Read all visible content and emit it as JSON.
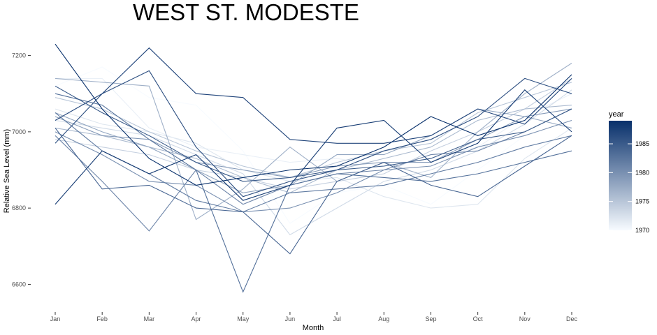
{
  "chart_data": {
    "type": "line",
    "title": "WEST ST. MODESTE",
    "xlabel": "Month",
    "ylabel": "Relative Sea Level (mm)",
    "categories": [
      "Jan",
      "Feb",
      "Mar",
      "Apr",
      "May",
      "Jun",
      "Jul",
      "Aug",
      "Sep",
      "Oct",
      "Nov",
      "Dec"
    ],
    "ylim": [
      6555,
      7245
    ],
    "yticks": [
      6600,
      6800,
      7000,
      7200
    ],
    "grid": false,
    "legend": {
      "title": "year",
      "placement": "right",
      "type": "colorbar",
      "range": [
        1970,
        1989
      ],
      "ticks": [
        1970,
        1975,
        1980,
        1985
      ],
      "color_low": "#f7fbff",
      "color_high": "#08306b"
    },
    "series": [
      {
        "year": 1970,
        "values": [
          7120,
          7170,
          7090,
          7070,
          6950,
          6760,
          6840,
          6860,
          6810,
          6900,
          6990,
          7070
        ]
      },
      {
        "year": 1971,
        "values": [
          7140,
          7140,
          7010,
          6960,
          6940,
          6920,
          6930,
          6910,
          6930,
          6960,
          7040,
          7100
        ]
      },
      {
        "year": 1972,
        "values": [
          7060,
          7020,
          7000,
          6970,
          6900,
          6870,
          6880,
          6830,
          6800,
          6810,
          6930,
          7010
        ]
      },
      {
        "year": 1973,
        "values": [
          7030,
          7010,
          6990,
          6940,
          6890,
          6730,
          6800,
          6870,
          6900,
          6950,
          7020,
          7110
        ]
      },
      {
        "year": 1974,
        "values": [
          6980,
          6960,
          6940,
          6900,
          6880,
          6850,
          6870,
          6890,
          6950,
          7000,
          7060,
          7140
        ]
      },
      {
        "year": 1975,
        "values": [
          7090,
          7060,
          7000,
          6950,
          6910,
          6880,
          6920,
          6950,
          6970,
          7050,
          7090,
          7130
        ]
      },
      {
        "year": 1976,
        "values": [
          7010,
          6990,
          6960,
          6930,
          6880,
          6840,
          6900,
          6930,
          6960,
          7030,
          7060,
          7070
        ]
      },
      {
        "year": 1977,
        "values": [
          7140,
          7130,
          7120,
          6770,
          6850,
          6960,
          6870,
          6920,
          6880,
          7000,
          7100,
          7180
        ]
      },
      {
        "year": 1978,
        "values": [
          7050,
          7000,
          6960,
          6900,
          6840,
          6860,
          6940,
          6940,
          6990,
          7060,
          7040,
          7010
        ]
      },
      {
        "year": 1979,
        "values": [
          7040,
          6990,
          6980,
          6920,
          6900,
          6880,
          6910,
          6920,
          6920,
          6980,
          7040,
          7060
        ]
      },
      {
        "year": 1980,
        "values": [
          7000,
          6940,
          6870,
          6860,
          6790,
          6800,
          6840,
          6900,
          6910,
          6960,
          6990,
          7030
        ]
      },
      {
        "year": 1981,
        "values": [
          6990,
          6870,
          6740,
          6900,
          6810,
          6860,
          6890,
          6900,
          6940,
          6950,
          7000,
          7060
        ]
      },
      {
        "year": 1982,
        "values": [
          7050,
          6950,
          6890,
          6820,
          6790,
          6840,
          6850,
          6860,
          6890,
          6920,
          6960,
          6990
        ]
      },
      {
        "year": 1983,
        "values": [
          7100,
          7070,
          6980,
          6900,
          6580,
          6860,
          6890,
          6880,
          6870,
          6890,
          6920,
          6950
        ]
      },
      {
        "year": 1984,
        "values": [
          7010,
          6850,
          6860,
          6800,
          6790,
          6680,
          6870,
          6920,
          6860,
          6830,
          6910,
          6990
        ]
      },
      {
        "year": 1985,
        "values": [
          7120,
          7050,
          6990,
          6920,
          6870,
          6880,
          6900,
          6910,
          6930,
          6980,
          7000,
          7060
        ]
      },
      {
        "year": 1986,
        "values": [
          6970,
          7100,
          7160,
          6960,
          6830,
          6870,
          6900,
          6950,
          6980,
          7040,
          7140,
          7100
        ]
      },
      {
        "year": 1987,
        "values": [
          7030,
          7100,
          7220,
          7100,
          7090,
          6980,
          6970,
          6970,
          6990,
          7060,
          7020,
          7140
        ]
      },
      {
        "year": 1988,
        "values": [
          6810,
          6950,
          6890,
          6940,
          6820,
          6860,
          7010,
          7030,
          6920,
          6970,
          7110,
          7000
        ]
      },
      {
        "year": 1989,
        "values": [
          7230,
          7060,
          6930,
          6860,
          6880,
          6900,
          6910,
          6960,
          7040,
          6990,
          7030,
          7150
        ]
      }
    ]
  }
}
